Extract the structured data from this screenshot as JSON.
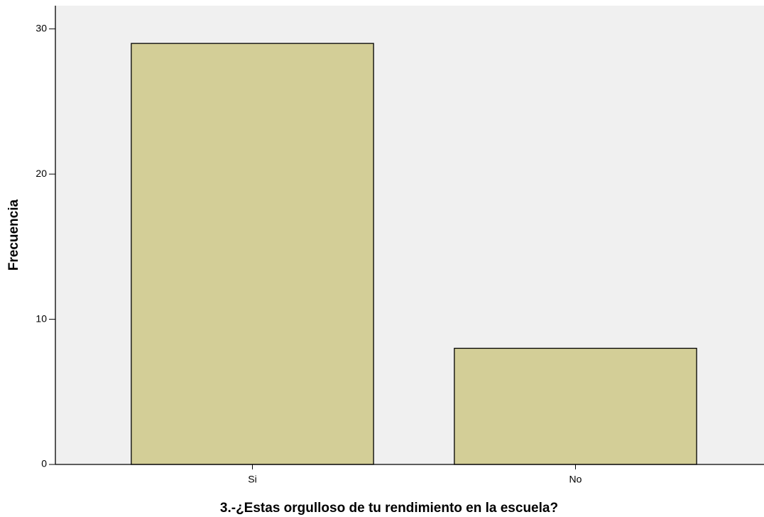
{
  "chart_data": {
    "type": "bar",
    "categories": [
      "Si",
      "No"
    ],
    "values": [
      29,
      8
    ],
    "color": "#d3ce97",
    "x_label": "3.-¿Estas orgulloso de tu rendimiento en la escuela?",
    "y_label": "Frecuencia",
    "ylim": [
      0,
      31.6
    ],
    "yticks": [
      0,
      10,
      20,
      30
    ],
    "grid": false
  }
}
